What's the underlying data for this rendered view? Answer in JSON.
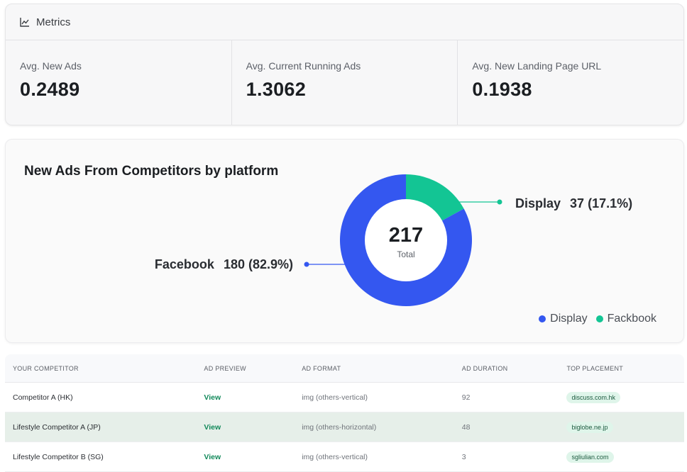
{
  "metrics": {
    "title": "Metrics",
    "icon": "line-chart-icon",
    "items": [
      {
        "label": "Avg. New Ads",
        "value": "0.2489"
      },
      {
        "label": "Avg. Current Running Ads",
        "value": "1.3062"
      },
      {
        "label": "Avg. New Landing Page URL",
        "value": "0.1938"
      }
    ]
  },
  "chart": {
    "title": "New Ads From Competitors by platform",
    "center_value": "217",
    "center_label": "Total",
    "callouts": {
      "display_name": "Display",
      "display_value": "37 (17.1%)",
      "facebook_name": "Facebook",
      "facebook_value": "180 (82.9%)"
    },
    "legend": [
      {
        "label": "Display",
        "color": "#3457f0"
      },
      {
        "label": "Fackbook",
        "color": "#13c594"
      }
    ]
  },
  "chart_data": {
    "type": "pie",
    "categories": [
      "Display",
      "Facebook"
    ],
    "values": [
      37,
      180
    ],
    "colors": [
      "#13c594",
      "#3457f0"
    ],
    "title": "New Ads From Competitors by platform"
  },
  "table": {
    "headers": [
      "YOUR COMPETITOR",
      "AD PREVIEW",
      "AD FORMAT",
      "AD DURATION",
      "TOP PLACEMENT"
    ],
    "rows": [
      {
        "competitor": "Competitor A (HK)",
        "preview": "View",
        "format": "img (others-vertical)",
        "duration": "92",
        "placement": "discuss.com.hk"
      },
      {
        "competitor": "Lifestyle Competitor A (JP)",
        "preview": "View",
        "format": "img (others-horizontal)",
        "duration": "48",
        "placement": "biglobe.ne.jp"
      },
      {
        "competitor": "Lifestyle Competitor B (SG)",
        "preview": "View",
        "format": "img (others-vertical)",
        "duration": "3",
        "placement": "sgliulian.com"
      }
    ]
  }
}
